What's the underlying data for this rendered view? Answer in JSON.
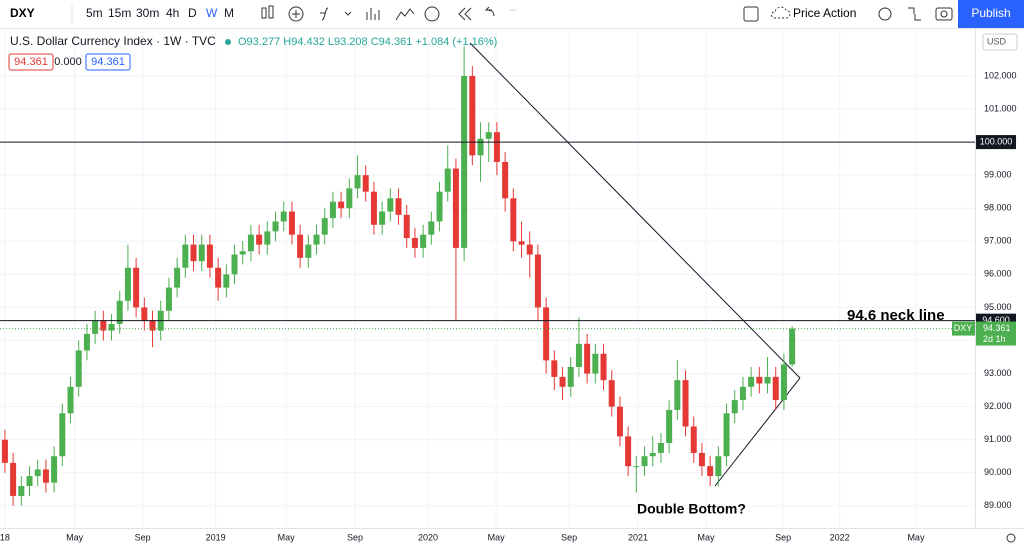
{
  "toolbar": {
    "symbol": "DXY",
    "intervals": [
      "5m",
      "15m",
      "30m",
      "4h",
      "D",
      "W",
      "M"
    ],
    "active_interval": "W",
    "template": "Price Action",
    "publish": "Publish"
  },
  "legend": {
    "title": "U.S. Dollar Currency Index · 1W · TVC",
    "ohlc": "O93.277 H94.432 L93.208 C94.361 +1.084 (+1.16%)",
    "boxes": [
      "94.361",
      "0.000",
      "94.361"
    ]
  },
  "currency": "USD",
  "chart_data": {
    "type": "candlestick",
    "up_color": "#4caf50",
    "down_color": "#e53935",
    "ylim": [
      88.33,
      103.42
    ],
    "yticks": [
      {
        "value": 89,
        "label": "89.000"
      },
      {
        "value": 90,
        "label": "90.000"
      },
      {
        "value": 91,
        "label": "91.000"
      },
      {
        "value": 92,
        "label": "92.000"
      },
      {
        "value": 93,
        "label": "93.000"
      },
      {
        "value": 94,
        "label": "94.000"
      },
      {
        "value": 95,
        "label": "95.000"
      },
      {
        "value": 96,
        "label": "96.000"
      },
      {
        "value": 97,
        "label": "97.000"
      },
      {
        "value": 98,
        "label": "98.000"
      },
      {
        "value": 99,
        "label": "99.000"
      },
      {
        "value": 100,
        "label": "100.000"
      },
      {
        "value": 101,
        "label": "101.000"
      },
      {
        "value": 102,
        "label": "102.000"
      }
    ],
    "xlim": [
      -0.6,
      118.3
    ],
    "xticks": [
      {
        "value": 0,
        "label": "18"
      },
      {
        "value": 8.5,
        "label": "May"
      },
      {
        "value": 16.8,
        "label": "Sep"
      },
      {
        "value": 25.7,
        "label": "2019"
      },
      {
        "value": 34.3,
        "label": "May"
      },
      {
        "value": 42.7,
        "label": "Sep"
      },
      {
        "value": 51.6,
        "label": "2020"
      },
      {
        "value": 59.9,
        "label": "May"
      },
      {
        "value": 68.8,
        "label": "Sep"
      },
      {
        "value": 77.2,
        "label": "2021"
      },
      {
        "value": 85.5,
        "label": "May"
      },
      {
        "value": 94.9,
        "label": "Sep"
      },
      {
        "value": 101.8,
        "label": "2022"
      },
      {
        "value": 111.1,
        "label": "May"
      }
    ],
    "open": [
      91.0,
      90.3,
      89.3,
      89.6,
      89.9,
      90.1,
      89.7,
      90.5,
      91.8,
      92.6,
      93.7,
      94.2,
      94.6,
      94.3,
      94.5,
      95.2,
      96.2,
      95.0,
      94.6,
      94.3,
      94.9,
      95.6,
      96.2,
      96.9,
      96.4,
      96.9,
      96.2,
      95.6,
      96.0,
      96.6,
      96.7,
      97.2,
      96.9,
      97.3,
      97.6,
      97.9,
      97.2,
      96.5,
      96.9,
      97.2,
      97.7,
      98.2,
      98.0,
      98.6,
      99.0,
      98.5,
      97.5,
      97.9,
      98.3,
      97.8,
      97.1,
      96.8,
      97.2,
      97.6,
      98.5,
      99.2,
      96.8,
      102.0,
      99.6,
      100.1,
      100.3,
      99.4,
      98.3,
      97.0,
      96.9,
      96.6,
      95.0,
      93.4,
      92.9,
      92.6,
      93.2,
      93.9,
      93.0,
      93.6,
      92.8,
      92.0,
      91.1,
      90.2,
      90.2,
      90.5,
      90.6,
      90.9,
      91.9,
      92.8,
      91.4,
      90.6,
      90.2,
      89.9,
      90.5,
      91.8,
      92.2,
      92.6,
      92.9,
      92.7,
      92.9,
      92.2,
      93.277
    ],
    "high": [
      91.3,
      90.6,
      89.9,
      90.2,
      90.4,
      90.4,
      90.8,
      92.1,
      92.9,
      94.0,
      94.5,
      94.9,
      94.9,
      94.8,
      95.5,
      96.9,
      96.5,
      95.3,
      94.9,
      95.2,
      95.9,
      96.5,
      97.2,
      97.2,
      97.2,
      97.2,
      96.5,
      96.3,
      96.9,
      97.0,
      97.5,
      97.5,
      97.6,
      97.9,
      98.2,
      98.2,
      97.5,
      97.2,
      97.5,
      98.0,
      98.5,
      98.5,
      98.9,
      99.6,
      99.3,
      98.8,
      98.2,
      98.6,
      98.6,
      98.1,
      97.4,
      97.5,
      97.9,
      98.8,
      99.9,
      99.5,
      102.9,
      102.3,
      100.6,
      100.6,
      100.6,
      99.7,
      98.6,
      97.6,
      97.3,
      96.9,
      95.3,
      93.7,
      93.2,
      93.5,
      94.7,
      94.2,
      93.9,
      93.9,
      93.1,
      92.3,
      91.4,
      90.5,
      90.8,
      91.1,
      91.2,
      92.2,
      93.4,
      93.1,
      91.7,
      90.9,
      90.5,
      90.8,
      92.1,
      92.5,
      92.9,
      93.2,
      93.2,
      93.5,
      93.2,
      93.6,
      94.432
    ],
    "low": [
      90.0,
      89.0,
      89.0,
      89.3,
      89.6,
      89.4,
      89.4,
      90.2,
      91.5,
      92.3,
      93.4,
      93.9,
      94.0,
      94.0,
      94.2,
      94.9,
      94.7,
      94.3,
      93.8,
      94.0,
      94.6,
      95.3,
      95.9,
      96.1,
      96.1,
      95.9,
      95.2,
      95.3,
      95.7,
      96.3,
      96.4,
      96.6,
      96.6,
      97.0,
      97.3,
      96.9,
      96.2,
      96.2,
      96.6,
      96.9,
      97.4,
      97.7,
      97.7,
      98.3,
      98.2,
      97.2,
      97.2,
      97.6,
      97.5,
      96.8,
      96.5,
      96.5,
      96.9,
      97.3,
      98.2,
      94.6,
      96.4,
      99.3,
      98.8,
      99.4,
      99.0,
      97.9,
      96.7,
      96.5,
      95.9,
      94.6,
      93.0,
      92.5,
      92.2,
      92.3,
      92.9,
      92.7,
      92.7,
      92.5,
      91.7,
      90.8,
      89.9,
      89.4,
      89.9,
      90.2,
      90.3,
      90.6,
      91.6,
      91.1,
      90.3,
      89.9,
      89.6,
      89.6,
      90.2,
      91.5,
      91.9,
      92.3,
      92.4,
      92.4,
      91.9,
      91.9,
      93.208
    ],
    "close": [
      90.3,
      89.3,
      89.6,
      89.9,
      90.1,
      89.7,
      90.5,
      91.8,
      92.6,
      93.7,
      94.2,
      94.6,
      94.3,
      94.5,
      95.2,
      96.2,
      95.0,
      94.6,
      94.3,
      94.9,
      95.6,
      96.2,
      96.9,
      96.4,
      96.9,
      96.2,
      95.6,
      96.0,
      96.6,
      96.7,
      97.2,
      96.9,
      97.3,
      97.6,
      97.9,
      97.2,
      96.5,
      96.9,
      97.2,
      97.7,
      98.2,
      98.0,
      98.6,
      99.0,
      98.5,
      97.5,
      97.9,
      98.3,
      97.8,
      97.1,
      96.8,
      97.2,
      97.6,
      98.5,
      99.2,
      96.8,
      102.0,
      99.6,
      100.1,
      100.3,
      99.4,
      98.3,
      97.0,
      96.9,
      96.6,
      95.0,
      93.4,
      92.9,
      92.6,
      93.2,
      93.9,
      93.0,
      93.6,
      92.8,
      92.0,
      91.1,
      90.2,
      90.2,
      90.5,
      90.6,
      90.9,
      91.9,
      92.8,
      91.4,
      90.6,
      90.2,
      89.9,
      90.5,
      91.8,
      92.2,
      92.6,
      92.9,
      92.7,
      92.9,
      92.2,
      93.277,
      94.361
    ],
    "hlines": [
      {
        "value": 100,
        "label": "100.000"
      },
      {
        "value": 94.6,
        "label": "94.600"
      }
    ],
    "last_price": {
      "name": "DXY",
      "value": 94.361,
      "label": "94.361",
      "countdown": "2d 1h"
    },
    "annotations": [
      "94.6 neck line",
      "Double Bottom?"
    ]
  }
}
